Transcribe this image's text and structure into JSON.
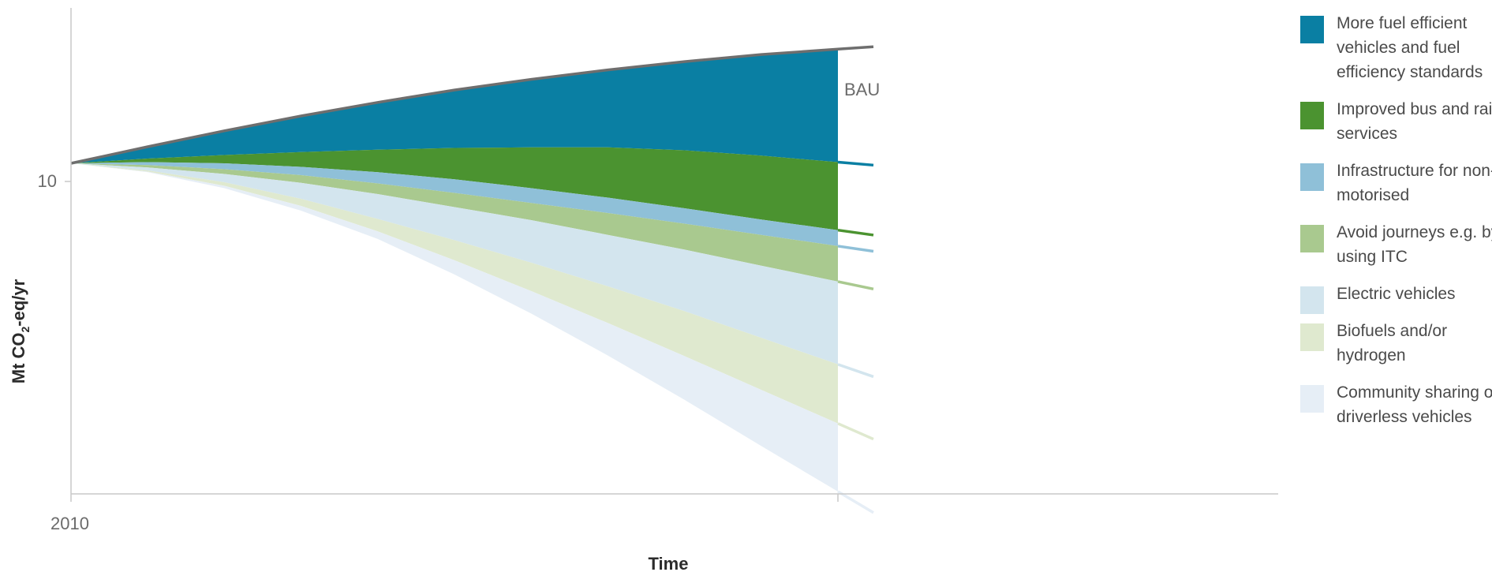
{
  "chart_data": {
    "type": "area",
    "title": "",
    "xlabel": "Time",
    "ylabel": "Mt CO2-eq/yr",
    "ylabel_main": "Mt CO",
    "ylabel_sub": "2",
    "ylabel_rest": "-eq/yr",
    "x_tick_labels": [
      "2010"
    ],
    "y_tick_labels": [
      "10"
    ],
    "bau_label": "BAU",
    "x": [
      0,
      0.1,
      0.2,
      0.3,
      0.4,
      0.5,
      0.6,
      0.7,
      0.8,
      0.9,
      1.0
    ],
    "bau": [
      10.0,
      10.28,
      10.55,
      10.8,
      11.03,
      11.24,
      11.42,
      11.58,
      11.72,
      11.84,
      11.93
    ],
    "series": [
      {
        "name": "More fuel efficient vehicles and fuel efficiency standards",
        "color": "#0a7fa3",
        "lower": [
          10.0,
          10.08,
          10.14,
          10.19,
          10.23,
          10.26,
          10.27,
          10.27,
          10.22,
          10.13,
          10.02
        ]
      },
      {
        "name": "Improved bus and rail services",
        "color": "#4b9330",
        "lower": [
          10.0,
          10.02,
          10.0,
          9.94,
          9.85,
          9.73,
          9.58,
          9.42,
          9.24,
          9.05,
          8.87
        ]
      },
      {
        "name": "Infrastructure for non-motorised",
        "color": "#8fc0d8",
        "lower": [
          10.0,
          9.97,
          9.9,
          9.8,
          9.66,
          9.5,
          9.33,
          9.16,
          8.98,
          8.79,
          8.6
        ]
      },
      {
        "name": "Avoid journeys e.g. by using ITC",
        "color": "#a9c98f",
        "lower": [
          10.0,
          9.93,
          9.82,
          9.67,
          9.48,
          9.26,
          9.04,
          8.79,
          8.54,
          8.27,
          8.0
        ]
      },
      {
        "name": "Electric vehicles",
        "color": "#d3e5ee",
        "lower": [
          10.0,
          9.88,
          9.68,
          9.4,
          9.06,
          8.7,
          8.32,
          7.92,
          7.5,
          7.05,
          6.6
        ]
      },
      {
        "name": "Biofuels and/or hydrogen",
        "color": "#dfe9cf",
        "lower": [
          10.0,
          9.86,
          9.62,
          9.28,
          8.85,
          8.36,
          7.84,
          7.3,
          6.74,
          6.17,
          5.6
        ]
      },
      {
        "name": "Community sharing or driverless vehicles",
        "color": "#e6eef6",
        "lower": [
          10.0,
          9.85,
          9.58,
          9.2,
          8.72,
          8.12,
          7.46,
          6.75,
          6.0,
          5.22,
          4.45
        ]
      }
    ],
    "legend_labels": [
      "More fuel efficient vehicles and fuel efficiency standards",
      "Improved bus and rail services",
      "Infrastructure for non-motorised",
      "Avoid journeys e.g. by using ITC",
      "Electric vehicles",
      "Biofuels and/or hydrogen",
      "Community sharing or driverless vehicles"
    ],
    "legend_position": "right",
    "grid": false
  }
}
